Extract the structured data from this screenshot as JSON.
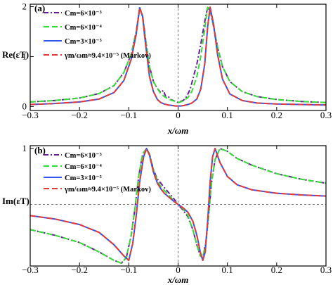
{
  "chart_data": [
    {
      "type": "line",
      "panel": "(a)",
      "ylabel": "Re(εT)",
      "xlabel": "x/ωm",
      "xlim": [
        -0.3,
        0.3
      ],
      "ylim": [
        -0.08,
        2.05
      ],
      "xticks": [
        -0.3,
        -0.2,
        -0.1,
        0,
        0.1,
        0.2,
        0.3
      ],
      "xtick_labels": [
        "−0.3",
        "−0.2",
        "−0.1",
        "0",
        "0.1",
        "0.2",
        "0.3"
      ],
      "yticks": [
        0,
        1,
        2
      ],
      "ytick_labels": [
        "0",
        "1",
        "2"
      ],
      "legend_position": "upper-left",
      "grid": false,
      "reference_lines": [
        "x = 0 (dashed)"
      ],
      "series": [
        {
          "name": "Cm=6×10⁻³",
          "color": "#6a1b9a",
          "style": "dash-dot",
          "x": [
            -0.3,
            -0.25,
            -0.2,
            -0.16,
            -0.13,
            -0.11,
            -0.095,
            -0.085,
            -0.078,
            -0.072,
            -0.066,
            -0.058,
            -0.05,
            -0.042,
            -0.035,
            -0.03,
            -0.025,
            -0.02,
            -0.015,
            -0.01,
            -0.005,
            0,
            0.005,
            0.01,
            0.015,
            0.02,
            0.025,
            0.03,
            0.038,
            0.046,
            0.054,
            0.06,
            0.065,
            0.072,
            0.08,
            0.09,
            0.105,
            0.13,
            0.16,
            0.2,
            0.25,
            0.3
          ],
          "y": [
            0.09,
            0.12,
            0.17,
            0.26,
            0.42,
            0.68,
            1.05,
            1.5,
            1.98,
            1.82,
            1.35,
            0.8,
            0.5,
            0.36,
            0.28,
            0.32,
            0.2,
            0.2,
            0.14,
            0.12,
            0.1,
            0.08,
            0.1,
            0.12,
            0.16,
            0.25,
            0.36,
            0.55,
            0.85,
            1.25,
            1.7,
            1.99,
            1.92,
            1.6,
            1.2,
            0.8,
            0.5,
            0.3,
            0.2,
            0.14,
            0.1,
            0.08
          ]
        },
        {
          "name": "Cm=6×10⁻⁴",
          "color": "#33dd33",
          "style": "dashed",
          "x": [
            -0.3,
            -0.25,
            -0.2,
            -0.16,
            -0.13,
            -0.11,
            -0.095,
            -0.085,
            -0.078,
            -0.072,
            -0.066,
            -0.058,
            -0.05,
            -0.042,
            -0.035,
            -0.028,
            -0.02,
            -0.012,
            -0.005,
            0,
            0.005,
            0.012,
            0.02,
            0.028,
            0.038,
            0.046,
            0.054,
            0.06,
            0.065,
            0.072,
            0.08,
            0.09,
            0.105,
            0.13,
            0.16,
            0.2,
            0.25,
            0.3
          ],
          "y": [
            0.09,
            0.12,
            0.17,
            0.26,
            0.42,
            0.68,
            1.05,
            1.5,
            1.98,
            1.82,
            1.35,
            0.8,
            0.5,
            0.36,
            0.26,
            0.2,
            0.15,
            0.12,
            0.1,
            0.08,
            0.09,
            0.12,
            0.18,
            0.3,
            0.6,
            1.0,
            1.55,
            1.99,
            1.95,
            1.6,
            1.2,
            0.8,
            0.5,
            0.3,
            0.2,
            0.14,
            0.1,
            0.08
          ]
        },
        {
          "name": "Cm=3×10⁻⁵",
          "color": "#3355ee",
          "style": "solid",
          "x": [
            -0.3,
            -0.25,
            -0.2,
            -0.16,
            -0.13,
            -0.11,
            -0.095,
            -0.085,
            -0.078,
            -0.072,
            -0.066,
            -0.058,
            -0.05,
            -0.042,
            -0.035,
            -0.028,
            -0.02,
            -0.012,
            -0.005,
            0,
            0.005,
            0.012,
            0.02,
            0.028,
            0.038,
            0.046,
            0.054,
            0.06,
            0.065,
            0.072,
            0.08,
            0.09,
            0.105,
            0.13,
            0.16,
            0.2,
            0.25,
            0.3
          ],
          "y": [
            0.04,
            0.06,
            0.09,
            0.15,
            0.28,
            0.52,
            0.95,
            1.45,
            1.98,
            1.8,
            1.25,
            0.6,
            0.3,
            0.14,
            0.08,
            0.05,
            0.03,
            0.02,
            0.01,
            0.01,
            0.01,
            0.02,
            0.04,
            0.07,
            0.15,
            0.35,
            0.85,
            1.6,
            1.99,
            1.65,
            1.05,
            0.55,
            0.25,
            0.12,
            0.07,
            0.05,
            0.04,
            0.03
          ]
        },
        {
          "name": "γm/ωm≈9.4×10⁻⁵ (Markov)",
          "color": "#e53935",
          "style": "dashed",
          "x": [
            -0.3,
            -0.25,
            -0.2,
            -0.16,
            -0.13,
            -0.11,
            -0.095,
            -0.085,
            -0.078,
            -0.072,
            -0.066,
            -0.058,
            -0.05,
            -0.042,
            -0.035,
            -0.028,
            -0.02,
            -0.012,
            -0.005,
            0,
            0.005,
            0.012,
            0.02,
            0.028,
            0.038,
            0.046,
            0.054,
            0.06,
            0.065,
            0.072,
            0.08,
            0.09,
            0.105,
            0.13,
            0.16,
            0.2,
            0.25,
            0.3
          ],
          "y": [
            0.04,
            0.06,
            0.09,
            0.15,
            0.28,
            0.52,
            0.95,
            1.45,
            1.98,
            1.8,
            1.25,
            0.6,
            0.3,
            0.14,
            0.08,
            0.05,
            0.03,
            0.02,
            0.01,
            0.01,
            0.01,
            0.02,
            0.04,
            0.07,
            0.15,
            0.35,
            0.85,
            1.6,
            1.99,
            1.65,
            1.05,
            0.55,
            0.25,
            0.12,
            0.07,
            0.05,
            0.04,
            0.03
          ]
        }
      ]
    },
    {
      "type": "line",
      "panel": "(b)",
      "ylabel": "Im(εT)",
      "xlabel": "x/ωm",
      "xlim": [
        -0.3,
        0.3
      ],
      "ylim": [
        -1.1,
        1.05
      ],
      "xticks": [
        -0.3,
        -0.2,
        -0.1,
        0,
        0.1,
        0.2,
        0.3
      ],
      "xtick_labels": [
        "−0.3",
        "−0.2",
        "−0.1",
        "0",
        "0.1",
        "0.2",
        "0.3"
      ],
      "yticks": [
        1
      ],
      "ytick_labels": [
        "1"
      ],
      "legend_position": "upper-left",
      "grid": false,
      "reference_lines": [
        "x = 0 (dashed)",
        "y = 0 (dashed)"
      ],
      "series": [
        {
          "name": "Cm=6×10⁻³",
          "color": "#6a1b9a",
          "style": "dash-dot",
          "x": [
            -0.3,
            -0.25,
            -0.2,
            -0.16,
            -0.13,
            -0.115,
            -0.105,
            -0.095,
            -0.088,
            -0.08,
            -0.072,
            -0.064,
            -0.058,
            -0.05,
            -0.042,
            -0.035,
            -0.028,
            -0.02,
            -0.012,
            -0.005,
            0,
            0.01,
            0.02,
            0.03,
            0.038,
            0.045,
            0.05,
            0.056,
            0.062,
            0.068,
            0.075,
            0.085,
            0.1,
            0.12,
            0.15,
            0.2,
            0.25,
            0.3
          ],
          "y": [
            -0.45,
            -0.55,
            -0.68,
            -0.85,
            -1.0,
            -1.05,
            -0.95,
            -0.55,
            -0.1,
            0.5,
            0.9,
            1.0,
            0.9,
            0.62,
            0.45,
            0.38,
            0.3,
            0.22,
            0.14,
            0.06,
            0.0,
            -0.1,
            -0.22,
            -0.45,
            -0.72,
            -0.92,
            -0.95,
            -0.7,
            -0.2,
            0.4,
            0.8,
            1.0,
            0.95,
            0.82,
            0.7,
            0.55,
            0.45,
            0.38
          ]
        },
        {
          "name": "Cm=6×10⁻⁴",
          "color": "#33dd33",
          "style": "dashed",
          "x": [
            -0.3,
            -0.25,
            -0.2,
            -0.16,
            -0.13,
            -0.115,
            -0.105,
            -0.095,
            -0.088,
            -0.08,
            -0.072,
            -0.064,
            -0.058,
            -0.05,
            -0.042,
            -0.035,
            -0.028,
            -0.02,
            -0.012,
            -0.005,
            0,
            0.01,
            0.02,
            0.03,
            0.038,
            0.045,
            0.05,
            0.056,
            0.062,
            0.068,
            0.075,
            0.085,
            0.1,
            0.12,
            0.15,
            0.2,
            0.25,
            0.3
          ],
          "y": [
            -0.45,
            -0.55,
            -0.68,
            -0.85,
            -1.0,
            -1.05,
            -0.95,
            -0.55,
            -0.1,
            0.5,
            0.9,
            1.0,
            0.9,
            0.62,
            0.42,
            0.32,
            0.25,
            0.18,
            0.1,
            0.04,
            0.0,
            -0.08,
            -0.2,
            -0.45,
            -0.72,
            -0.92,
            -0.95,
            -0.7,
            -0.2,
            0.4,
            0.8,
            1.0,
            0.95,
            0.82,
            0.7,
            0.55,
            0.45,
            0.38
          ]
        },
        {
          "name": "Cm=3×10⁻⁵",
          "color": "#3355ee",
          "style": "solid",
          "x": [
            -0.3,
            -0.25,
            -0.2,
            -0.16,
            -0.13,
            -0.11,
            -0.1,
            -0.092,
            -0.085,
            -0.078,
            -0.07,
            -0.064,
            -0.058,
            -0.05,
            -0.042,
            -0.035,
            -0.028,
            -0.02,
            -0.012,
            -0.005,
            0,
            0.01,
            0.02,
            0.03,
            0.038,
            0.045,
            0.05,
            0.055,
            0.06,
            0.065,
            0.07,
            0.075,
            0.085,
            0.1,
            0.12,
            0.15,
            0.2,
            0.25,
            0.3
          ],
          "y": [
            -0.2,
            -0.26,
            -0.36,
            -0.5,
            -0.72,
            -0.92,
            -1.0,
            -0.7,
            -0.2,
            0.4,
            0.85,
            1.0,
            0.88,
            0.58,
            0.38,
            0.28,
            0.2,
            0.14,
            0.08,
            0.03,
            0.0,
            -0.06,
            -0.14,
            -0.3,
            -0.55,
            -0.85,
            -1.0,
            -0.85,
            -0.3,
            0.4,
            0.85,
            1.0,
            0.75,
            0.5,
            0.35,
            0.26,
            0.2,
            0.17,
            0.15
          ]
        },
        {
          "name": "γm/ωm≈9.4×10⁻⁵ (Markov)",
          "color": "#e53935",
          "style": "dashed",
          "x": [
            -0.3,
            -0.25,
            -0.2,
            -0.16,
            -0.13,
            -0.11,
            -0.1,
            -0.092,
            -0.085,
            -0.078,
            -0.07,
            -0.064,
            -0.058,
            -0.05,
            -0.042,
            -0.035,
            -0.028,
            -0.02,
            -0.012,
            -0.005,
            0,
            0.01,
            0.02,
            0.03,
            0.038,
            0.045,
            0.05,
            0.055,
            0.06,
            0.065,
            0.07,
            0.075,
            0.085,
            0.1,
            0.12,
            0.15,
            0.2,
            0.25,
            0.3
          ],
          "y": [
            -0.2,
            -0.26,
            -0.36,
            -0.5,
            -0.72,
            -0.92,
            -1.0,
            -0.7,
            -0.2,
            0.4,
            0.85,
            1.0,
            0.88,
            0.58,
            0.38,
            0.28,
            0.2,
            0.14,
            0.08,
            0.03,
            0.0,
            -0.06,
            -0.14,
            -0.3,
            -0.55,
            -0.85,
            -1.0,
            -0.85,
            -0.3,
            0.4,
            0.85,
            1.0,
            0.75,
            0.5,
            0.35,
            0.26,
            0.2,
            0.17,
            0.15
          ]
        }
      ]
    }
  ]
}
